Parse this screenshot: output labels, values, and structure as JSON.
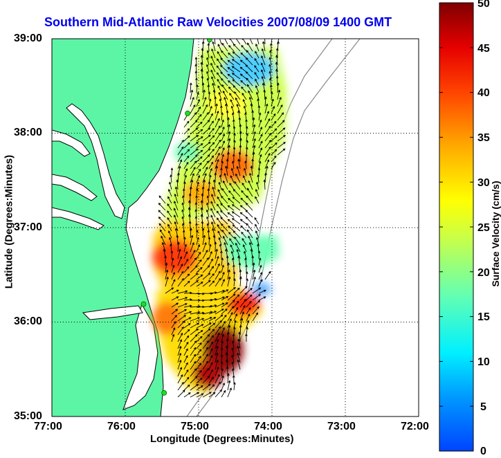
{
  "title": "Southern Mid-Atlantic Raw Velocities 2007/08/09 1400 GMT",
  "x_axis": {
    "label": "Longitude (Degrees:Minutes)",
    "ticks": [
      "77:00",
      "76:00",
      "75:00",
      "74:00",
      "73:00",
      "72:00"
    ]
  },
  "y_axis": {
    "label": "Latitude (Degrees:Minutes)",
    "ticks": [
      "39:00",
      "38:00",
      "37:00",
      "36:00",
      "35:00"
    ]
  },
  "colorbar": {
    "label": "Surface Velocity (cm/s)",
    "ticks": [
      "50",
      "45",
      "40",
      "35",
      "30",
      "25",
      "20",
      "15",
      "10",
      "5",
      "0"
    ],
    "range": [
      0,
      50
    ]
  },
  "colors": {
    "land": "#5cf5a5",
    "water": "#ffffff",
    "title": "#0000ee",
    "station": "#22dd22"
  },
  "chart_data": {
    "type": "heatmap",
    "title": "Southern Mid-Atlantic Raw Velocities 2007/08/09 1400 GMT",
    "xlabel": "Longitude (Degrees:Minutes)",
    "ylabel": "Latitude (Degrees:Minutes)",
    "xlim": [
      -77.0,
      -72.0
    ],
    "ylim": [
      35.0,
      39.0
    ],
    "colorbar_range": [
      0,
      50
    ],
    "colorbar_label": "Surface Velocity (cm/s)",
    "grid": true,
    "stations": [
      {
        "lon": -74.85,
        "lat": 38.99
      },
      {
        "lon": -75.15,
        "lat": 38.21
      },
      {
        "lon": -75.75,
        "lat": 36.19
      },
      {
        "lon": -75.47,
        "lat": 35.25
      }
    ]
  }
}
